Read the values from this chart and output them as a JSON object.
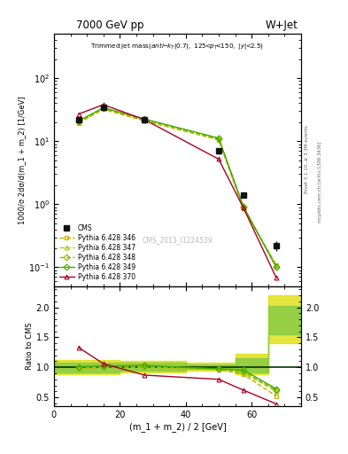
{
  "title_top": "7000 GeV pp",
  "title_right": "W+Jet",
  "subplot_title": "Trimmed jet mass",
  "subplot_title2": "(anti-k_{T}(0.7), 125<p_{T}<150, |y|<2.5)",
  "ylabel_main": "1000/σ 2dσ/d(m_1 + m_2) [1/GeV]",
  "ylabel_ratio": "Ratio to CMS",
  "xlabel": "(m_1 + m_2) / 2 [GeV]",
  "watermark": "CMS_2013_I1224539",
  "rivet_label": "Rivet 3.1.10, ≥ 3.3M events",
  "mcplots_label": "mcplots.cern.ch [arXiv:1306.3436]",
  "x_cms": [
    7.5,
    15.0,
    27.5,
    50.0,
    57.5,
    67.5
  ],
  "y_cms": [
    22.0,
    35.0,
    22.0,
    7.0,
    1.4,
    0.22
  ],
  "y_cms_err": [
    2.5,
    3.5,
    2.0,
    0.8,
    0.15,
    0.04
  ],
  "x_346": [
    7.5,
    15.0,
    27.5,
    50.0,
    57.5,
    67.5
  ],
  "y_346": [
    19.5,
    32.0,
    21.0,
    10.5,
    0.85,
    0.11
  ],
  "x_347": [
    7.5,
    15.0,
    27.5,
    50.0,
    57.5,
    67.5
  ],
  "y_347": [
    20.0,
    33.0,
    21.5,
    10.8,
    0.88,
    0.105
  ],
  "x_348": [
    7.5,
    15.0,
    27.5,
    50.0,
    57.5,
    67.5
  ],
  "y_348": [
    20.5,
    33.5,
    22.0,
    11.0,
    0.9,
    0.1
  ],
  "x_349": [
    7.5,
    15.0,
    27.5,
    50.0,
    57.5,
    67.5
  ],
  "y_349": [
    21.0,
    34.0,
    22.5,
    11.2,
    0.93,
    0.1
  ],
  "x_370": [
    7.5,
    15.0,
    27.5,
    50.0,
    57.5,
    67.5
  ],
  "y_370": [
    27.0,
    38.0,
    22.0,
    5.2,
    0.88,
    0.068
  ],
  "ratio_x": [
    7.5,
    15.0,
    27.5,
    50.0,
    57.5,
    67.5
  ],
  "ratio_346": [
    0.975,
    1.0,
    1.0,
    0.97,
    0.88,
    0.52
  ],
  "ratio_347": [
    0.98,
    1.01,
    1.01,
    0.97,
    0.905,
    0.6
  ],
  "ratio_348": [
    1.0,
    1.02,
    1.02,
    0.97,
    0.93,
    0.62
  ],
  "ratio_349": [
    1.01,
    1.02,
    1.03,
    0.975,
    0.955,
    0.64
  ],
  "ratio_370": [
    1.33,
    1.06,
    0.87,
    0.8,
    0.62,
    0.39
  ],
  "band_x_yellow": [
    0,
    10,
    20,
    40,
    55,
    65,
    75
  ],
  "band_yellow_low": [
    0.88,
    0.88,
    0.92,
    0.95,
    0.88,
    1.4,
    1.4
  ],
  "band_yellow_high": [
    1.12,
    1.12,
    1.1,
    1.08,
    1.22,
    2.2,
    2.2
  ],
  "band_x_green": [
    0,
    10,
    20,
    40,
    55,
    65,
    75
  ],
  "band_green_low": [
    0.92,
    0.92,
    0.95,
    0.97,
    0.91,
    1.55,
    1.55
  ],
  "band_green_high": [
    1.08,
    1.08,
    1.07,
    1.05,
    1.15,
    2.02,
    2.02
  ],
  "color_cms": "#111111",
  "color_346": "#ccaa00",
  "color_347": "#aacc00",
  "color_348": "#88bb00",
  "color_349": "#44aa00",
  "color_370": "#aa0022",
  "color_ref_line": "#003300",
  "bg_color": "#ffffff",
  "xlim": [
    0,
    75
  ],
  "ylim_main_log": [
    -1.3,
    2.7
  ],
  "ylim_ratio": [
    0.35,
    2.35
  ]
}
